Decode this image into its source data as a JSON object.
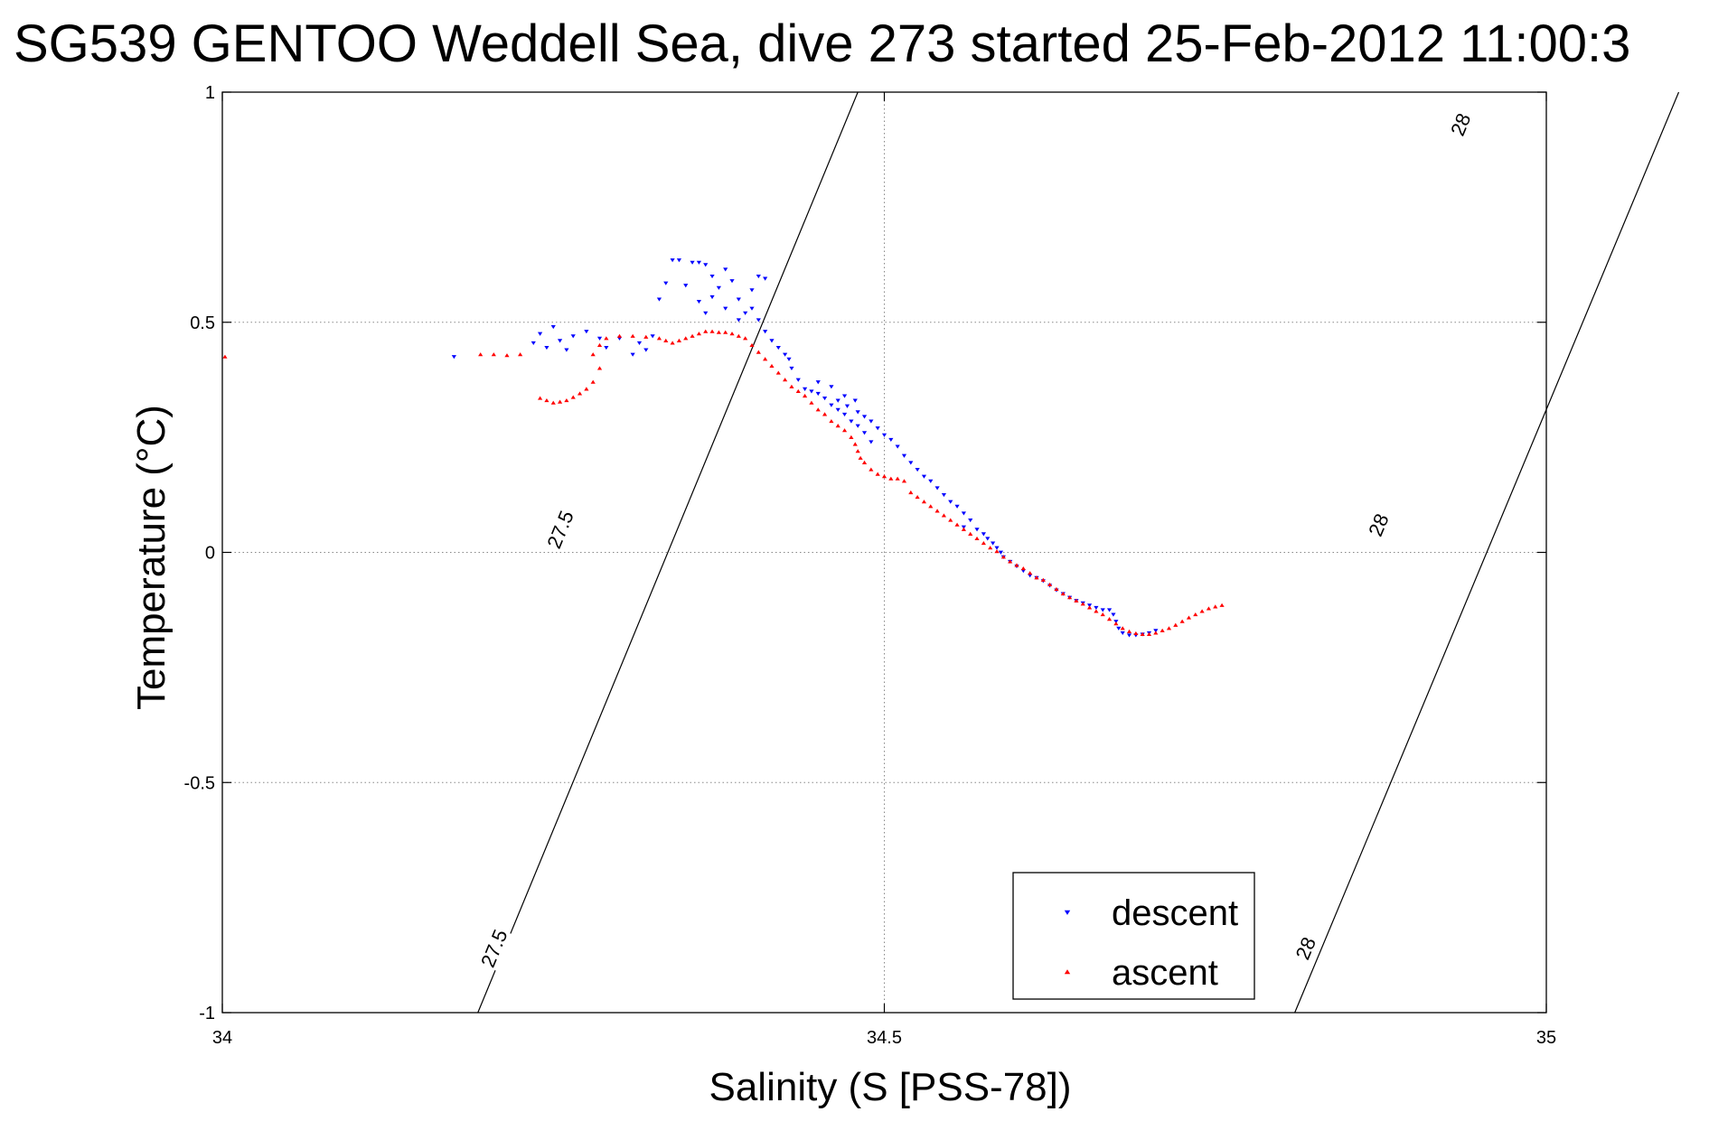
{
  "chart_data": {
    "type": "scatter",
    "title": "SG539 GENTOO Weddell Sea, dive 273 started 25-Feb-2012 11:00:3",
    "xlabel": "Salinity (S [PSS-78])",
    "ylabel": "Temperature (°C)",
    "xlim": [
      34,
      35
    ],
    "ylim": [
      -1,
      1
    ],
    "xticks": [
      34,
      34.5,
      35
    ],
    "xtick_labels": [
      "34",
      "34.5",
      "35"
    ],
    "yticks": [
      -1,
      -0.5,
      0,
      0.5,
      1
    ],
    "ytick_labels": [
      "-1",
      "-0.5",
      "0",
      "0.5",
      "1"
    ],
    "grid": true,
    "legend_position": "bottom-right",
    "series": [
      {
        "name": "descent",
        "color": "#0000ff",
        "marker": "triangle-down",
        "points": [
          [
            34.175,
            0.425
          ],
          [
            34.235,
            0.455
          ],
          [
            34.24,
            0.475
          ],
          [
            34.245,
            0.445
          ],
          [
            34.25,
            0.49
          ],
          [
            34.255,
            0.46
          ],
          [
            34.26,
            0.44
          ],
          [
            34.265,
            0.47
          ],
          [
            34.275,
            0.48
          ],
          [
            34.285,
            0.465
          ],
          [
            34.29,
            0.445
          ],
          [
            34.3,
            0.465
          ],
          [
            34.31,
            0.43
          ],
          [
            34.315,
            0.455
          ],
          [
            34.32,
            0.44
          ],
          [
            34.325,
            0.47
          ],
          [
            34.33,
            0.55
          ],
          [
            34.335,
            0.585
          ],
          [
            34.34,
            0.635
          ],
          [
            34.345,
            0.635
          ],
          [
            34.35,
            0.58
          ],
          [
            34.355,
            0.63
          ],
          [
            34.36,
            0.63
          ],
          [
            34.365,
            0.625
          ],
          [
            34.37,
            0.6
          ],
          [
            34.375,
            0.575
          ],
          [
            34.38,
            0.615
          ],
          [
            34.385,
            0.59
          ],
          [
            34.39,
            0.55
          ],
          [
            34.395,
            0.52
          ],
          [
            34.4,
            0.57
          ],
          [
            34.405,
            0.6
          ],
          [
            34.41,
            0.595
          ],
          [
            34.36,
            0.545
          ],
          [
            34.365,
            0.52
          ],
          [
            34.37,
            0.555
          ],
          [
            34.38,
            0.53
          ],
          [
            34.39,
            0.505
          ],
          [
            34.4,
            0.53
          ],
          [
            34.405,
            0.505
          ],
          [
            34.41,
            0.48
          ],
          [
            34.415,
            0.46
          ],
          [
            34.42,
            0.445
          ],
          [
            34.425,
            0.43
          ],
          [
            34.428,
            0.42
          ],
          [
            34.43,
            0.4
          ],
          [
            34.435,
            0.375
          ],
          [
            34.44,
            0.355
          ],
          [
            34.445,
            0.35
          ],
          [
            34.45,
            0.345
          ],
          [
            34.455,
            0.335
          ],
          [
            34.46,
            0.32
          ],
          [
            34.465,
            0.31
          ],
          [
            34.47,
            0.3
          ],
          [
            34.475,
            0.285
          ],
          [
            34.48,
            0.275
          ],
          [
            34.485,
            0.26
          ],
          [
            34.49,
            0.24
          ],
          [
            34.45,
            0.37
          ],
          [
            34.46,
            0.36
          ],
          [
            34.47,
            0.34
          ],
          [
            34.478,
            0.33
          ],
          [
            34.465,
            0.33
          ],
          [
            34.472,
            0.318
          ],
          [
            34.48,
            0.305
          ],
          [
            34.485,
            0.295
          ],
          [
            34.49,
            0.285
          ],
          [
            34.495,
            0.27
          ],
          [
            34.5,
            0.255
          ],
          [
            34.505,
            0.245
          ],
          [
            34.51,
            0.23
          ],
          [
            34.515,
            0.21
          ],
          [
            34.52,
            0.195
          ],
          [
            34.525,
            0.18
          ],
          [
            34.53,
            0.165
          ],
          [
            34.535,
            0.155
          ],
          [
            34.54,
            0.14
          ],
          [
            34.545,
            0.125
          ],
          [
            34.55,
            0.11
          ],
          [
            34.555,
            0.1
          ],
          [
            34.56,
            0.085
          ],
          [
            34.565,
            0.07
          ],
          [
            34.56,
            0.055
          ],
          [
            34.57,
            0.05
          ],
          [
            34.575,
            0.04
          ],
          [
            34.578,
            0.03
          ],
          [
            34.582,
            0.02
          ],
          [
            34.585,
            0.01
          ],
          [
            34.588,
            0.0
          ],
          [
            34.59,
            -0.01
          ],
          [
            34.595,
            -0.02
          ],
          [
            34.6,
            -0.03
          ],
          [
            34.605,
            -0.04
          ],
          [
            34.61,
            -0.05
          ],
          [
            34.615,
            -0.055
          ],
          [
            34.62,
            -0.062
          ],
          [
            34.625,
            -0.072
          ],
          [
            34.63,
            -0.082
          ],
          [
            34.635,
            -0.09
          ],
          [
            34.64,
            -0.098
          ],
          [
            34.645,
            -0.105
          ],
          [
            34.65,
            -0.11
          ],
          [
            34.655,
            -0.115
          ],
          [
            34.66,
            -0.12
          ],
          [
            34.665,
            -0.125
          ],
          [
            34.67,
            -0.125
          ],
          [
            34.673,
            -0.135
          ],
          [
            34.675,
            -0.15
          ],
          [
            34.677,
            -0.165
          ],
          [
            34.68,
            -0.175
          ],
          [
            34.685,
            -0.18
          ],
          [
            34.69,
            -0.18
          ],
          [
            34.695,
            -0.178
          ],
          [
            34.7,
            -0.175
          ],
          [
            34.705,
            -0.17
          ]
        ]
      },
      {
        "name": "ascent",
        "color": "#ff0000",
        "marker": "triangle-up",
        "points": [
          [
            34.002,
            0.425
          ],
          [
            34.195,
            0.43
          ],
          [
            34.205,
            0.43
          ],
          [
            34.215,
            0.428
          ],
          [
            34.225,
            0.43
          ],
          [
            34.24,
            0.335
          ],
          [
            34.245,
            0.33
          ],
          [
            34.25,
            0.325
          ],
          [
            34.255,
            0.327
          ],
          [
            34.26,
            0.33
          ],
          [
            34.265,
            0.337
          ],
          [
            34.27,
            0.345
          ],
          [
            34.275,
            0.355
          ],
          [
            34.28,
            0.37
          ],
          [
            34.285,
            0.4
          ],
          [
            34.28,
            0.43
          ],
          [
            34.285,
            0.45
          ],
          [
            34.29,
            0.465
          ],
          [
            34.3,
            0.47
          ],
          [
            34.31,
            0.47
          ],
          [
            34.32,
            0.468
          ],
          [
            34.33,
            0.465
          ],
          [
            34.335,
            0.46
          ],
          [
            34.34,
            0.455
          ],
          [
            34.345,
            0.46
          ],
          [
            34.35,
            0.465
          ],
          [
            34.355,
            0.47
          ],
          [
            34.36,
            0.475
          ],
          [
            34.365,
            0.48
          ],
          [
            34.37,
            0.48
          ],
          [
            34.375,
            0.478
          ],
          [
            34.38,
            0.478
          ],
          [
            34.385,
            0.475
          ],
          [
            34.39,
            0.47
          ],
          [
            34.395,
            0.465
          ],
          [
            34.4,
            0.45
          ],
          [
            34.405,
            0.435
          ],
          [
            34.41,
            0.42
          ],
          [
            34.415,
            0.405
          ],
          [
            34.42,
            0.39
          ],
          [
            34.425,
            0.375
          ],
          [
            34.43,
            0.36
          ],
          [
            34.435,
            0.35
          ],
          [
            34.44,
            0.34
          ],
          [
            34.445,
            0.325
          ],
          [
            34.45,
            0.31
          ],
          [
            34.455,
            0.3
          ],
          [
            34.46,
            0.285
          ],
          [
            34.465,
            0.275
          ],
          [
            34.47,
            0.265
          ],
          [
            34.475,
            0.25
          ],
          [
            34.478,
            0.235
          ],
          [
            34.48,
            0.22
          ],
          [
            34.482,
            0.205
          ],
          [
            34.485,
            0.195
          ],
          [
            34.49,
            0.18
          ],
          [
            34.495,
            0.17
          ],
          [
            34.5,
            0.165
          ],
          [
            34.505,
            0.16
          ],
          [
            34.51,
            0.16
          ],
          [
            34.515,
            0.155
          ],
          [
            34.52,
            0.13
          ],
          [
            34.525,
            0.12
          ],
          [
            34.53,
            0.11
          ],
          [
            34.535,
            0.1
          ],
          [
            34.54,
            0.09
          ],
          [
            34.545,
            0.08
          ],
          [
            34.55,
            0.07
          ],
          [
            34.555,
            0.06
          ],
          [
            34.56,
            0.05
          ],
          [
            34.565,
            0.04
          ],
          [
            34.57,
            0.03
          ],
          [
            34.575,
            0.02
          ],
          [
            34.58,
            0.01
          ],
          [
            34.585,
            0.002
          ],
          [
            34.59,
            -0.01
          ],
          [
            34.595,
            -0.02
          ],
          [
            34.6,
            -0.028
          ],
          [
            34.605,
            -0.035
          ],
          [
            34.61,
            -0.045
          ],
          [
            34.615,
            -0.055
          ],
          [
            34.62,
            -0.06
          ],
          [
            34.625,
            -0.07
          ],
          [
            34.63,
            -0.08
          ],
          [
            34.635,
            -0.09
          ],
          [
            34.64,
            -0.098
          ],
          [
            34.645,
            -0.105
          ],
          [
            34.65,
            -0.112
          ],
          [
            34.655,
            -0.12
          ],
          [
            34.66,
            -0.128
          ],
          [
            34.665,
            -0.135
          ],
          [
            34.67,
            -0.145
          ],
          [
            34.675,
            -0.155
          ],
          [
            34.68,
            -0.165
          ],
          [
            34.685,
            -0.172
          ],
          [
            34.69,
            -0.176
          ],
          [
            34.695,
            -0.178
          ],
          [
            34.7,
            -0.178
          ],
          [
            34.705,
            -0.175
          ],
          [
            34.71,
            -0.17
          ],
          [
            34.715,
            -0.165
          ],
          [
            34.72,
            -0.158
          ],
          [
            34.725,
            -0.15
          ],
          [
            34.73,
            -0.142
          ],
          [
            34.735,
            -0.135
          ],
          [
            34.74,
            -0.128
          ],
          [
            34.745,
            -0.122
          ],
          [
            34.75,
            -0.118
          ],
          [
            34.755,
            -0.115
          ]
        ]
      }
    ],
    "density_contours": [
      {
        "label": "27.5",
        "points": [
          [
            34.193,
            -1
          ],
          [
            34.48,
            1
          ]
        ],
        "label_positions": [
          [
            34.205,
            -0.86
          ],
          [
            34.255,
            0.05
          ]
        ]
      },
      {
        "label": "28",
        "points": [
          [
            34.81,
            -1
          ],
          [
            35.1,
            1
          ]
        ],
        "label_positions": [
          [
            34.818,
            -0.86
          ],
          [
            34.873,
            0.06
          ],
          [
            34.935,
            0.93
          ]
        ]
      }
    ]
  }
}
